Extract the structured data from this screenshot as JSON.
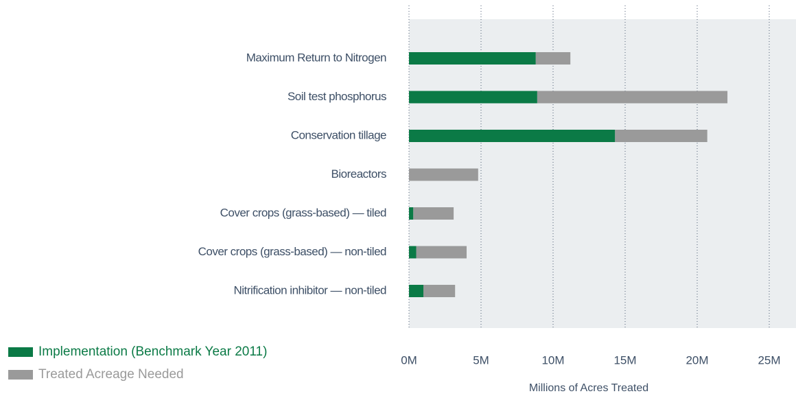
{
  "chart_data": {
    "type": "stacked_barh",
    "xlabel": "Millions of Acres Treated",
    "categories": [
      "Maximum Return to Nitrogen",
      "Soil test phosphorus",
      "Conservation tillage",
      "Bioreactors",
      "Cover crops (grass-based) — tiled",
      "Cover crops (grass-based) — non-tiled",
      "Nitrification inhibitor — non-tiled"
    ],
    "series": [
      {
        "name": "Implementation (Benchmark Year 2011)",
        "color": "#0b7a46",
        "values": [
          8.8,
          8.9,
          14.3,
          0,
          0.3,
          0.5,
          1.0
        ]
      },
      {
        "name": "Treated Acreage Needed",
        "color": "#9a9a9a",
        "values": [
          2.4,
          13.2,
          6.4,
          4.8,
          2.8,
          3.5,
          2.2
        ]
      }
    ],
    "xlim": [
      0,
      27
    ],
    "xticks": [
      {
        "value": 0,
        "label": "0M"
      },
      {
        "value": 5,
        "label": "5M"
      },
      {
        "value": 10,
        "label": "10M"
      },
      {
        "value": 15,
        "label": "15M"
      },
      {
        "value": 20,
        "label": "20M"
      },
      {
        "value": 25,
        "label": "25M"
      }
    ],
    "grid": true
  }
}
